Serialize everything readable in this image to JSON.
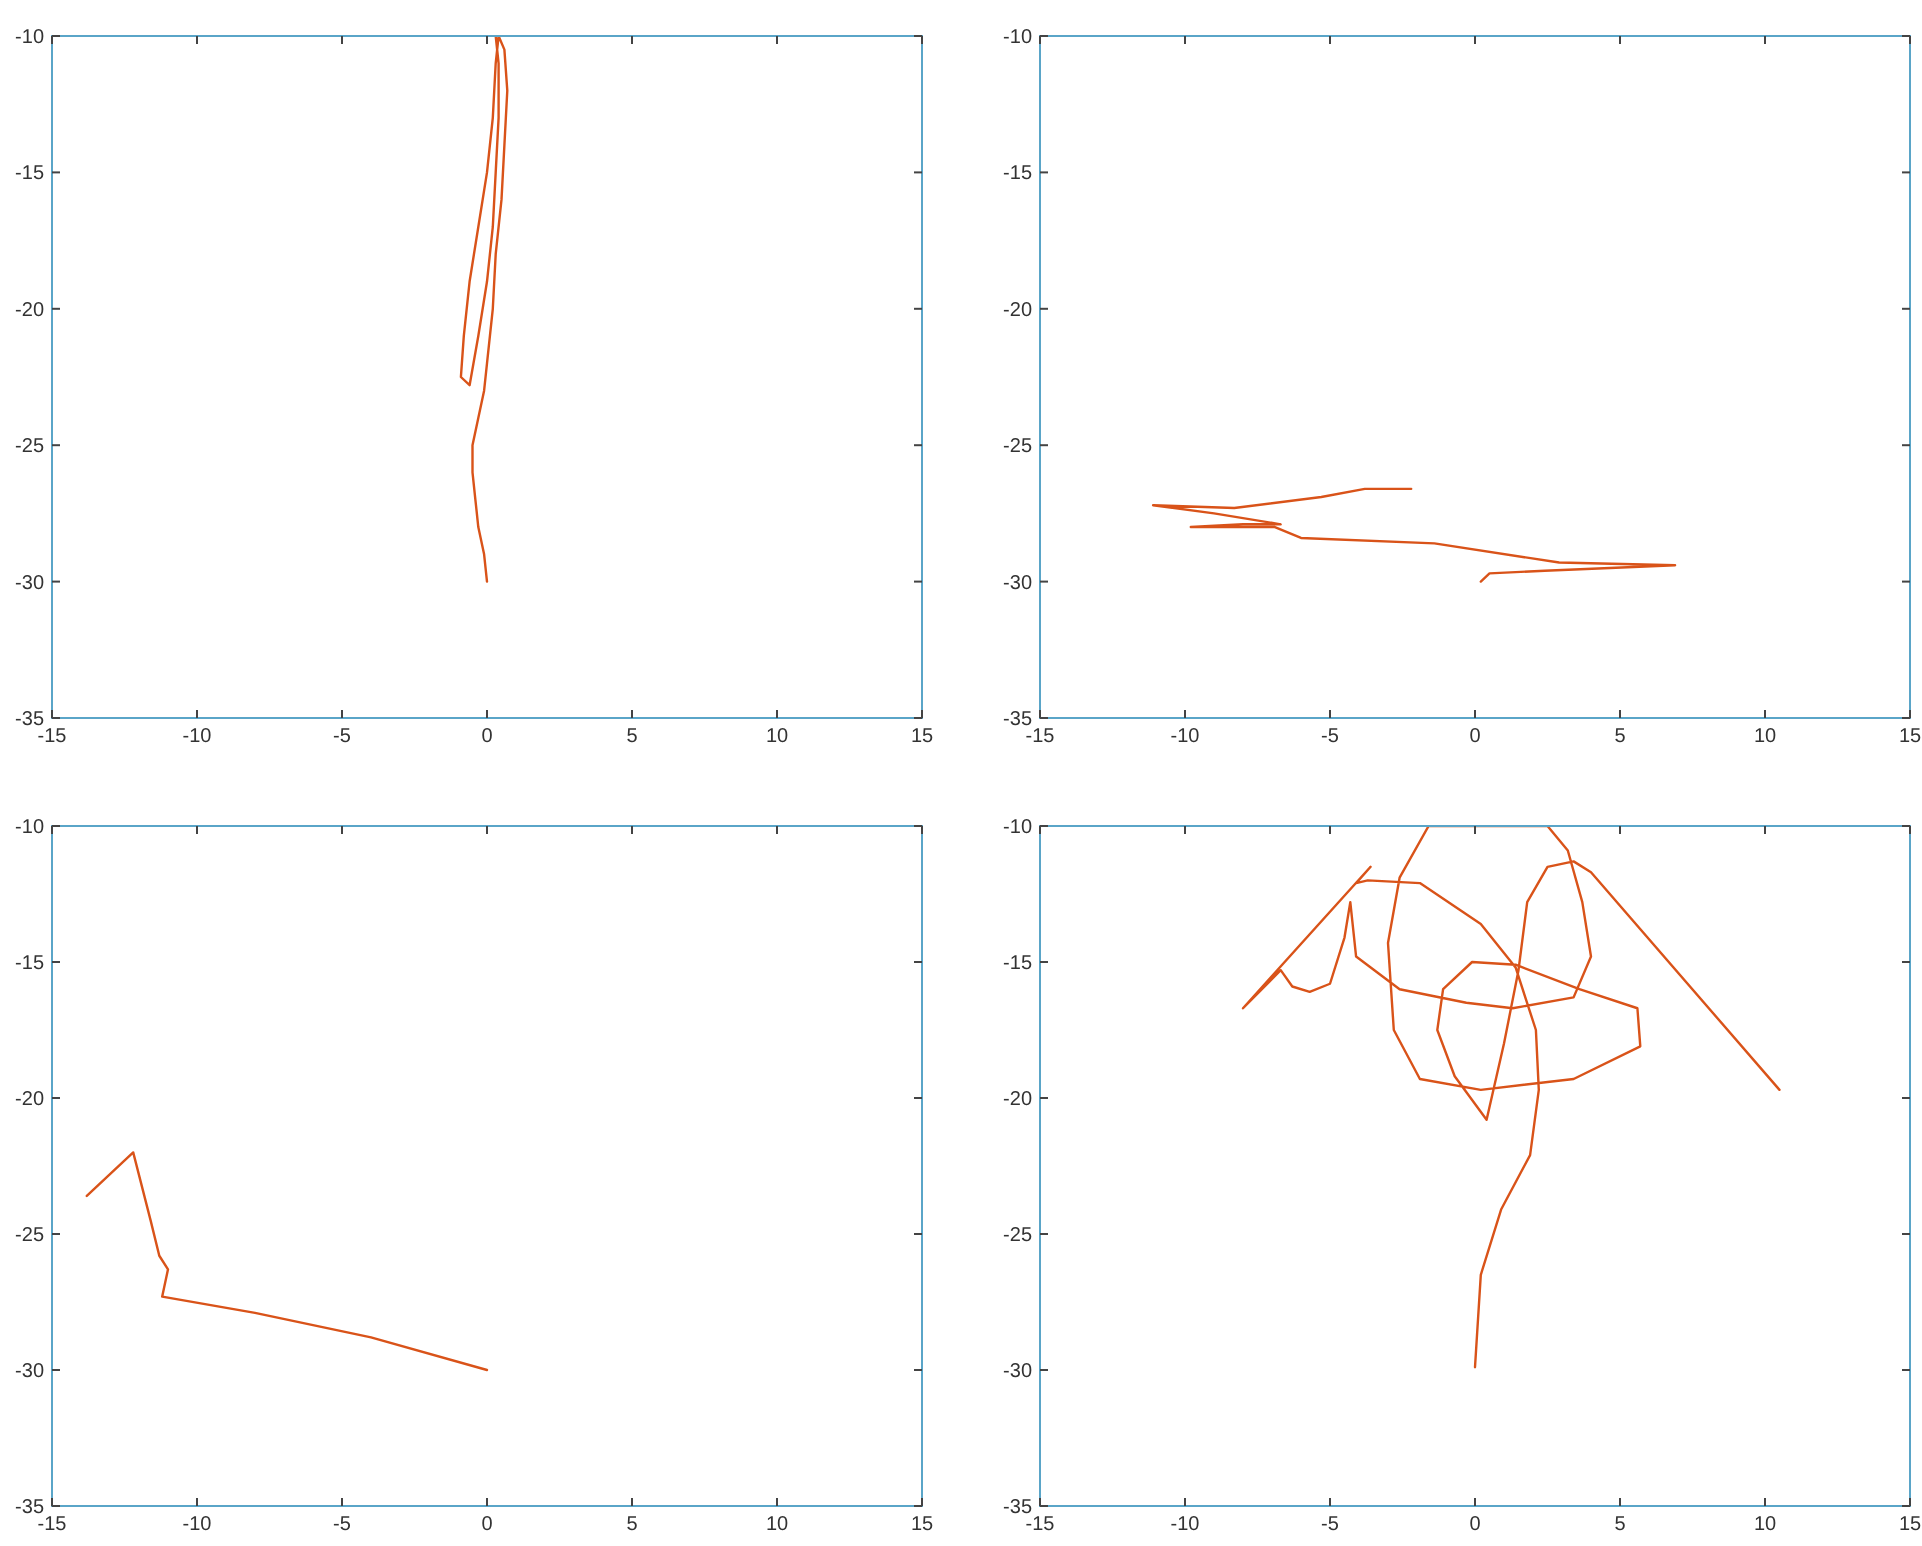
{
  "chart_data": [
    {
      "type": "line",
      "xlim": [
        -15,
        15
      ],
      "ylim": [
        -35,
        -10
      ],
      "xticks": [
        -15,
        -10,
        -5,
        0,
        5,
        10,
        15
      ],
      "yticks": [
        -35,
        -30,
        -25,
        -20,
        -15,
        -10
      ],
      "series": [
        {
          "color": "#d95319",
          "x": [
            0,
            -0.1,
            -0.3,
            -0.4,
            -0.5,
            -0.5,
            -0.3,
            -0.1,
            0,
            0.2,
            0.3,
            0.5,
            0.6,
            0.7,
            0.6,
            0.4,
            0.3,
            0.2,
            0,
            -0.3,
            -0.6,
            -0.8,
            -0.9,
            -0.6,
            -0.3,
            0,
            0.2,
            0.3,
            0.4,
            0.4,
            0.3
          ],
          "values": [
            -30,
            -29,
            -28,
            -27,
            -26,
            -25,
            -24,
            -23,
            -22,
            -20,
            -18,
            -16,
            -14,
            -12,
            -10.5,
            -10,
            -11,
            -13,
            -15,
            -17,
            -19,
            -21,
            -22.5,
            -22.8,
            -21,
            -19,
            -17,
            -15,
            -13,
            -11,
            -10
          ]
        }
      ]
    },
    {
      "type": "line",
      "xlim": [
        -15,
        15
      ],
      "ylim": [
        -35,
        -10
      ],
      "xticks": [
        -15,
        -10,
        -5,
        0,
        5,
        10,
        15
      ],
      "yticks": [
        -35,
        -30,
        -25,
        -20,
        -15,
        -10
      ],
      "series": [
        {
          "color": "#d95319",
          "x": [
            0.2,
            0.5,
            2.4,
            6.9,
            2.9,
            -1.4,
            -6,
            -6.9,
            -9.8,
            -8,
            -6.7,
            -9,
            -11.1,
            -8.3,
            -5.3,
            -3.8,
            -2.2
          ],
          "values": [
            -30,
            -29.7,
            -29.6,
            -29.4,
            -29.3,
            -28.6,
            -28.4,
            -28,
            -28,
            -27.9,
            -27.9,
            -27.5,
            -27.2,
            -27.3,
            -26.9,
            -26.6,
            -26.6
          ]
        }
      ]
    },
    {
      "type": "line",
      "xlim": [
        -15,
        15
      ],
      "ylim": [
        -35,
        -10
      ],
      "xticks": [
        -15,
        -10,
        -5,
        0,
        5,
        10,
        15
      ],
      "yticks": [
        -35,
        -30,
        -25,
        -20,
        -15,
        -10
      ],
      "series": [
        {
          "color": "#d95319",
          "x": [
            -13.8,
            -12.2,
            -11.6,
            -11.3,
            -11,
            -11.2,
            -8,
            -4,
            0
          ],
          "values": [
            -23.6,
            -22,
            -24.5,
            -25.8,
            -26.3,
            -27.3,
            -27.9,
            -28.8,
            -30
          ]
        }
      ]
    },
    {
      "type": "line",
      "xlim": [
        -15,
        15
      ],
      "ylim": [
        -35,
        -10
      ],
      "xticks": [
        -15,
        -10,
        -5,
        0,
        5,
        10,
        15
      ],
      "yticks": [
        -35,
        -30,
        -25,
        -20,
        -15,
        -10
      ],
      "series": [
        {
          "color": "#d95319",
          "x": [
            0,
            0.2,
            0.9,
            1.9,
            2.2,
            2.1,
            1.4,
            0.2,
            -1.9,
            -3.7,
            -4.1,
            -3.6,
            -8.0,
            -6.7,
            -6.3,
            -5.7,
            -5.0,
            -4.5,
            -4.3,
            -4.1,
            -2.6,
            -0.3,
            1.3,
            3.4,
            4.0,
            3.7,
            3.2,
            2.5,
            -1.6,
            -2.6,
            -3.0,
            -2.8,
            -1.9,
            0.2,
            3.4,
            5.7,
            5.6,
            3.6,
            1.4,
            -0.1,
            -1.1,
            -1.3,
            -0.7,
            0.4,
            1.0,
            1.5,
            1.8,
            2.5,
            3.4,
            4.0,
            10.5
          ],
          "values": [
            -29.9,
            -26.5,
            -24.1,
            -22.1,
            -19.7,
            -17.5,
            -15.2,
            -13.6,
            -12.1,
            -12.0,
            -12.1,
            -11.5,
            -16.7,
            -15.3,
            -15.9,
            -16.1,
            -15.8,
            -14.1,
            -12.8,
            -14.8,
            -16.0,
            -16.5,
            -16.7,
            -16.3,
            -14.8,
            -12.8,
            -10.9,
            -10.0,
            -10.0,
            -11.9,
            -14.3,
            -17.5,
            -19.3,
            -19.7,
            -19.3,
            -18.1,
            -16.7,
            -16.0,
            -15.1,
            -15.0,
            -16.0,
            -17.5,
            -19.2,
            -20.8,
            -18.0,
            -15.3,
            -12.8,
            -11.5,
            -11.3,
            -11.7,
            -19.7
          ]
        }
      ]
    }
  ]
}
